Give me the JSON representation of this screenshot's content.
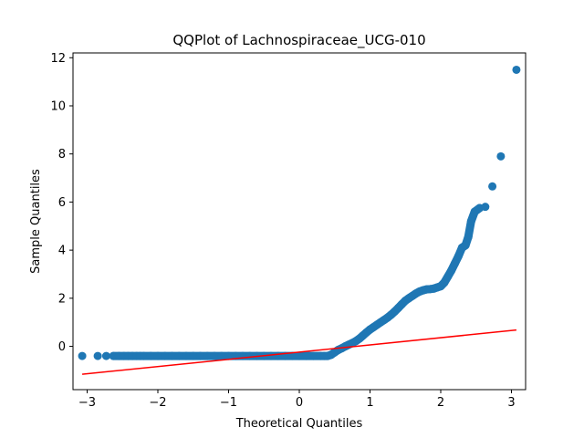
{
  "chart_data": {
    "type": "scatter",
    "title": "QQPlot of Lachnospiraceae_UCG-010",
    "xlabel": "Theoretical Quantiles",
    "ylabel": "Sample Quantiles",
    "xlim": [
      -3.2,
      3.2
    ],
    "ylim": [
      -1.8,
      12.2
    ],
    "xticks": [
      -3,
      -2,
      -1,
      0,
      1,
      2,
      3
    ],
    "xtick_labels": [
      "−3",
      "−2",
      "−1",
      "0",
      "1",
      "2",
      "3"
    ],
    "yticks": [
      0,
      2,
      4,
      6,
      8,
      10,
      12
    ],
    "ytick_labels": [
      "0",
      "2",
      "4",
      "6",
      "8",
      "10",
      "12"
    ],
    "grid": false,
    "legend": "none",
    "colors": {
      "points": "#1f77b4",
      "reference_line": "#ff0000"
    },
    "series": [
      {
        "kind": "points",
        "x": [
          -3.07,
          -2.85,
          -2.73,
          -2.63,
          -2.55,
          -2.48,
          -2.42,
          -2.36,
          -2.3,
          -2.25,
          -2.2,
          -2.1,
          -2.0,
          -1.9,
          -1.8,
          -1.7,
          -1.6,
          -1.5,
          -1.4,
          -1.3,
          -1.2,
          -1.1,
          -1.0,
          -0.9,
          -0.8,
          -0.7,
          -0.6,
          -0.5,
          -0.4,
          -0.3,
          -0.2,
          -0.1,
          0.0,
          0.1,
          0.2,
          0.3,
          0.35,
          0.4,
          0.45,
          0.5,
          0.55,
          0.6,
          0.65,
          0.7,
          0.75,
          0.8,
          0.85,
          0.9,
          0.95,
          1.0,
          1.05,
          1.1,
          1.15,
          1.2,
          1.25,
          1.3,
          1.35,
          1.4,
          1.45,
          1.5,
          1.55,
          1.6,
          1.65,
          1.7,
          1.75,
          1.8,
          1.85,
          1.9,
          1.95,
          2.0,
          2.05,
          2.1,
          2.15,
          2.2,
          2.25,
          2.3,
          2.35,
          2.39,
          2.43,
          2.48,
          2.55,
          2.63,
          2.73,
          2.85,
          3.07
        ],
        "y": [
          -0.4,
          -0.4,
          -0.4,
          -0.4,
          -0.4,
          -0.4,
          -0.4,
          -0.4,
          -0.4,
          -0.4,
          -0.4,
          -0.4,
          -0.4,
          -0.4,
          -0.4,
          -0.4,
          -0.4,
          -0.4,
          -0.4,
          -0.4,
          -0.4,
          -0.4,
          -0.4,
          -0.4,
          -0.4,
          -0.4,
          -0.4,
          -0.4,
          -0.4,
          -0.4,
          -0.4,
          -0.4,
          -0.4,
          -0.4,
          -0.4,
          -0.4,
          -0.4,
          -0.4,
          -0.35,
          -0.25,
          -0.15,
          -0.08,
          0.0,
          0.07,
          0.14,
          0.22,
          0.32,
          0.45,
          0.58,
          0.7,
          0.8,
          0.9,
          1.0,
          1.1,
          1.2,
          1.32,
          1.45,
          1.6,
          1.75,
          1.9,
          2.0,
          2.1,
          2.2,
          2.28,
          2.33,
          2.37,
          2.38,
          2.4,
          2.45,
          2.5,
          2.65,
          2.9,
          3.15,
          3.45,
          3.75,
          4.1,
          4.2,
          4.55,
          5.2,
          5.6,
          5.75,
          5.8,
          6.65,
          7.9,
          11.5
        ]
      },
      {
        "kind": "line",
        "x": [
          -3.07,
          3.07
        ],
        "y": [
          -1.16,
          0.68
        ]
      }
    ]
  }
}
